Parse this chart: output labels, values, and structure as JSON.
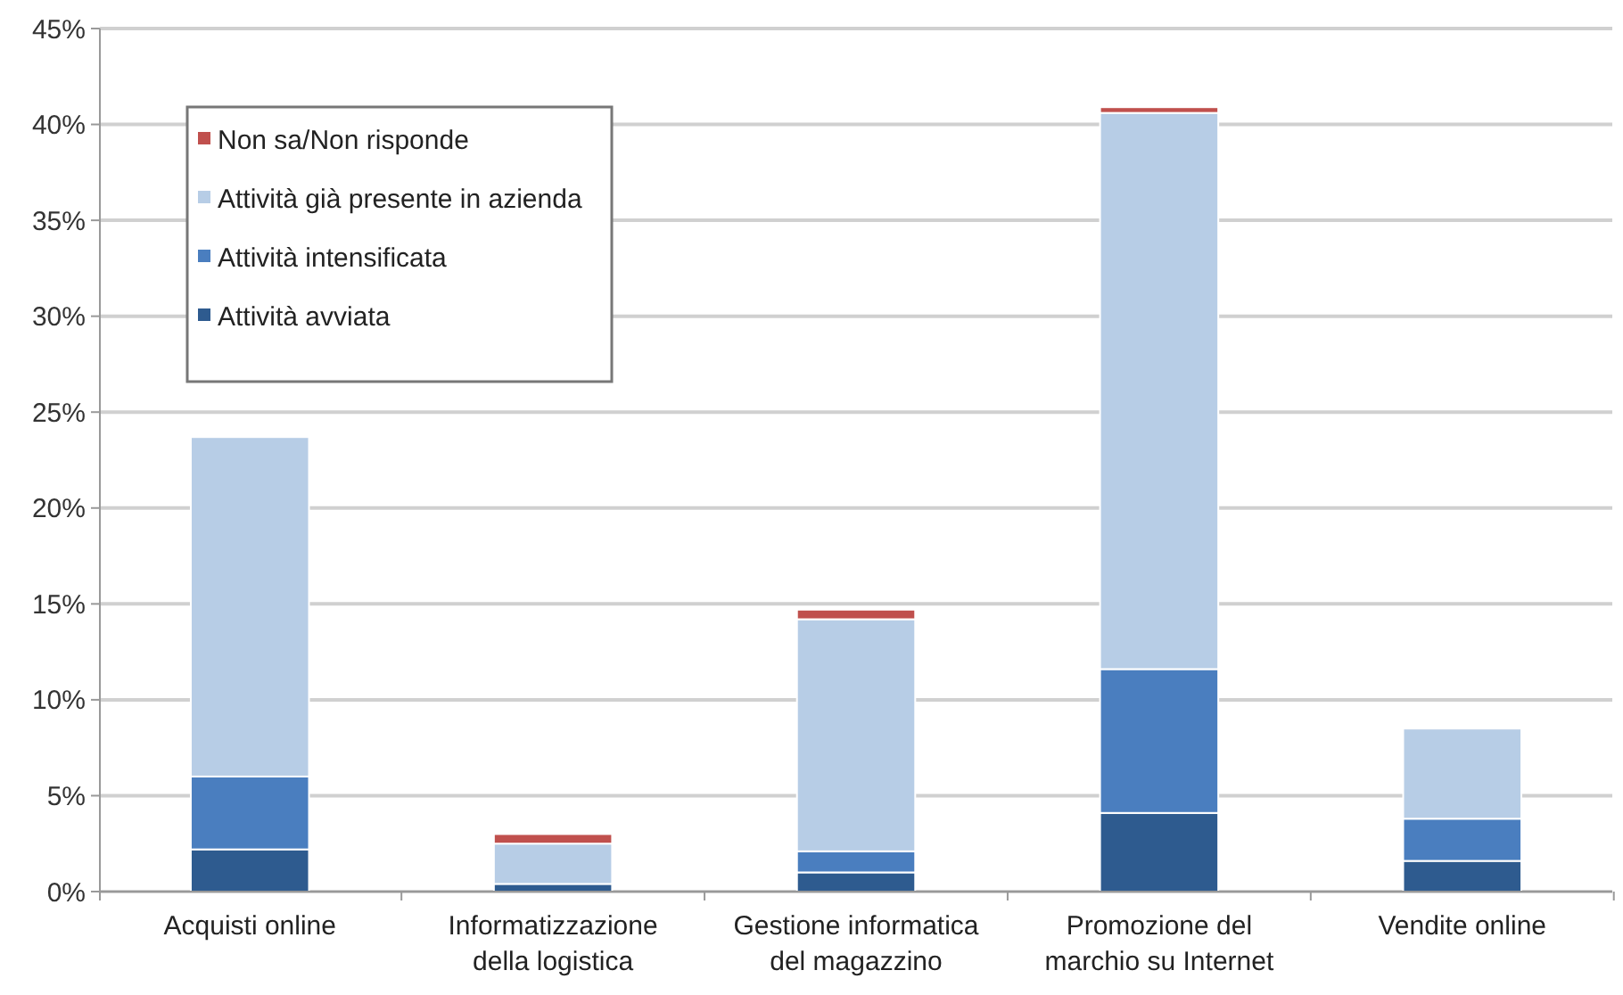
{
  "chart_data": {
    "type": "bar",
    "stacked": true,
    "categories": [
      "Acquisti online",
      "Informatizzazione della logistica",
      "Gestione informatica del magazzino",
      "Promozione del marchio su Internet",
      "Vendite online"
    ],
    "series": [
      {
        "name": "Attività avviata",
        "color": "#2e5b8f",
        "values": [
          2.2,
          0.4,
          1.0,
          4.1,
          1.6
        ]
      },
      {
        "name": "Attività intensificata",
        "color": "#4a7ebf",
        "values": [
          3.8,
          0,
          1.1,
          7.5,
          2.2
        ]
      },
      {
        "name": "Attività già presente in azienda",
        "color": "#b7cde6",
        "values": [
          17.7,
          2.1,
          12.1,
          29.0,
          4.7
        ]
      },
      {
        "name": "Non sa/Non risponde",
        "color": "#c0504d",
        "values": [
          0,
          0.5,
          0.5,
          0.3,
          0
        ]
      }
    ],
    "ylim": [
      0,
      45
    ],
    "yticks": [
      {
        "value": 0,
        "label": "0%"
      },
      {
        "value": 5,
        "label": "5%"
      },
      {
        "value": 10,
        "label": "10%"
      },
      {
        "value": 15,
        "label": "15%"
      },
      {
        "value": 20,
        "label": "20%"
      },
      {
        "value": 25,
        "label": "25%"
      },
      {
        "value": 30,
        "label": "30%"
      },
      {
        "value": 35,
        "label": "35%"
      },
      {
        "value": 40,
        "label": "40%"
      },
      {
        "value": 45,
        "label": "45%"
      }
    ],
    "grid": "y",
    "legend": "top left"
  }
}
